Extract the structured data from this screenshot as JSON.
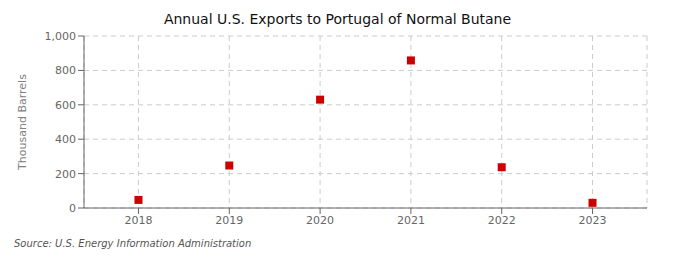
{
  "chart_data": {
    "type": "scatter",
    "title": "Annual U.S. Exports to Portugal of Normal Butane",
    "y_label": "Thousand Barrels",
    "annotations": [
      "Source: U.S. Energy Information Administration"
    ],
    "x": [
      2018,
      2019,
      2020,
      2021,
      2022,
      2023
    ],
    "values": [
      47,
      247,
      630,
      858,
      237,
      30
    ],
    "color": "#cc0000",
    "marker": "square",
    "xlim": [
      2017.4,
      2023.6
    ],
    "xticks": [
      2018,
      2019,
      2020,
      2021,
      2022,
      2023
    ],
    "ylim": [
      0,
      1000
    ],
    "yticks": [
      0,
      200,
      400,
      600,
      800,
      {
        "value": 1000,
        "label": "1,000"
      }
    ],
    "grid": true
  }
}
